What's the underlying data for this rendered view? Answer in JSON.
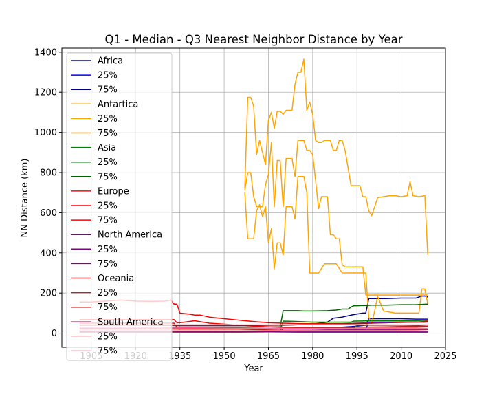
{
  "chart_data": {
    "type": "line",
    "title": "Q1 - Median - Q3 Nearest Neighbor Distance by Year",
    "xlabel": "Year",
    "ylabel": "NN Distance (km)",
    "xlim": [
      1895,
      2025
    ],
    "ylim": [
      -70,
      1420
    ],
    "xticks": [
      1905,
      1920,
      1935,
      1950,
      1965,
      1980,
      1995,
      2010,
      2025
    ],
    "yticks": [
      0,
      200,
      400,
      600,
      800,
      1000,
      1200,
      1400
    ],
    "grid": true,
    "legend_position": "top-left",
    "series": [
      {
        "name": "Africa",
        "color": "#0000cd",
        "x": [
          1901,
          1905,
          1915,
          1925,
          1935,
          1945,
          1955,
          1965,
          1975,
          1985,
          1990,
          1995,
          1998,
          1999,
          2005,
          2010,
          2015,
          2018,
          2019
        ],
        "values": [
          25,
          25,
          24,
          23,
          22,
          22,
          22,
          23,
          25,
          28,
          30,
          35,
          40,
          72,
          72,
          72,
          70,
          70,
          70
        ]
      },
      {
        "name": "25%",
        "color": "#0000ff",
        "x": [
          1901,
          1905,
          1915,
          1925,
          1935,
          1945,
          1955,
          1965,
          1975,
          1985,
          1990,
          1995,
          1998,
          1999,
          2005,
          2010,
          2015,
          2018,
          2019
        ],
        "values": [
          12,
          12,
          11,
          11,
          10,
          10,
          10,
          11,
          12,
          14,
          15,
          18,
          20,
          55,
          55,
          55,
          55,
          55,
          58
        ]
      },
      {
        "name": "75%",
        "color": "#00008b",
        "x": [
          1901,
          1905,
          1915,
          1925,
          1935,
          1945,
          1955,
          1965,
          1970,
          1975,
          1980,
          1985,
          1987,
          1990,
          1993,
          1995,
          1997,
          1998,
          1999,
          2005,
          2010,
          2015,
          2017,
          2018,
          2019
        ],
        "values": [
          45,
          45,
          42,
          40,
          38,
          38,
          38,
          40,
          40,
          42,
          45,
          55,
          75,
          80,
          90,
          95,
          100,
          100,
          172,
          172,
          175,
          175,
          185,
          185,
          180
        ]
      },
      {
        "name": "Antartica",
        "color": "#ffa500",
        "x": [
          1957,
          1958,
          1959,
          1960,
          1961,
          1962,
          1963,
          1964,
          1965,
          1966,
          1967,
          1968,
          1969,
          1970,
          1971,
          1972,
          1973,
          1974,
          1975,
          1976,
          1977,
          1978,
          1979,
          1980,
          1981,
          1982,
          1983,
          1984,
          1985,
          1986,
          1987,
          1988,
          1989,
          1990,
          1991,
          1992,
          1993,
          1994,
          1995,
          1996,
          1997,
          1998,
          1999,
          2000,
          2002,
          2004,
          2006,
          2008,
          2010,
          2012,
          2013,
          2014,
          2016,
          2018,
          2019
        ],
        "values": [
          710,
          800,
          800,
          680,
          630,
          630,
          630,
          740,
          790,
          950,
          630,
          860,
          860,
          630,
          870,
          870,
          870,
          780,
          960,
          960,
          960,
          910,
          910,
          890,
          760,
          620,
          680,
          680,
          680,
          490,
          490,
          470,
          470,
          340,
          330,
          330,
          330,
          330,
          330,
          330,
          330,
          190,
          190,
          190,
          190,
          190,
          190,
          190,
          190,
          190,
          190,
          190,
          190,
          190,
          190
        ]
      },
      {
        "name": "25%",
        "color": "#ffa500",
        "x": [
          1957,
          1958,
          1959,
          1960,
          1961,
          1962,
          1963,
          1964,
          1965,
          1966,
          1967,
          1968,
          1969,
          1970,
          1971,
          1972,
          1973,
          1974,
          1975,
          1976,
          1977,
          1978,
          1979,
          1980,
          1982,
          1984,
          1985,
          1986,
          1988,
          1990,
          1995,
          1998,
          1999,
          2000,
          2001,
          2002,
          2004,
          2008,
          2012,
          2016,
          2017,
          2018,
          2019
        ],
        "values": [
          700,
          470,
          470,
          470,
          610,
          640,
          580,
          630,
          450,
          520,
          320,
          450,
          450,
          390,
          630,
          630,
          630,
          570,
          780,
          780,
          780,
          700,
          300,
          300,
          300,
          345,
          345,
          345,
          345,
          300,
          300,
          300,
          80,
          50,
          110,
          185,
          110,
          100,
          100,
          100,
          220,
          220,
          145
        ]
      },
      {
        "name": "75%",
        "color": "#ffa500",
        "x": [
          1957,
          1958,
          1959,
          1960,
          1961,
          1962,
          1963,
          1964,
          1965,
          1966,
          1967,
          1968,
          1969,
          1970,
          1971,
          1972,
          1973,
          1974,
          1975,
          1976,
          1977,
          1978,
          1979,
          1980,
          1981,
          1982,
          1983,
          1984,
          1985,
          1986,
          1987,
          1988,
          1989,
          1990,
          1991,
          1993,
          1995,
          1996,
          1997,
          1998,
          1999,
          2000,
          2002,
          2004,
          2006,
          2008,
          2010,
          2012,
          2013,
          2014,
          2016,
          2018,
          2019
        ],
        "values": [
          720,
          1175,
          1175,
          1130,
          890,
          960,
          900,
          840,
          1060,
          1100,
          1020,
          1105,
          1105,
          1090,
          1110,
          1110,
          1110,
          1240,
          1300,
          1300,
          1365,
          1110,
          1150,
          1090,
          960,
          950,
          950,
          960,
          960,
          960,
          910,
          910,
          960,
          960,
          910,
          735,
          735,
          735,
          680,
          680,
          610,
          585,
          675,
          680,
          685,
          685,
          680,
          685,
          755,
          685,
          680,
          685,
          390
        ]
      },
      {
        "name": "Asia",
        "color": "#008000",
        "x": [
          1901,
          1905,
          1915,
          1925,
          1935,
          1945,
          1955,
          1965,
          1968,
          1969,
          1970,
          1975,
          1980,
          1985,
          1990,
          1993,
          1994,
          1995,
          2000,
          2005,
          2010,
          2015,
          2019
        ],
        "values": [
          12,
          12,
          12,
          12,
          12,
          12,
          12,
          13,
          14,
          14,
          60,
          58,
          55,
          55,
          55,
          55,
          60,
          60,
          62,
          62,
          62,
          62,
          65
        ]
      },
      {
        "name": "25%",
        "color": "#008000",
        "x": [
          1901,
          1905,
          1915,
          1925,
          1935,
          1945,
          1955,
          1965,
          1968,
          1969,
          1970,
          1975,
          1980,
          1985,
          1990,
          1994,
          1995,
          2000,
          2005,
          2010,
          2015,
          2019
        ],
        "values": [
          5,
          5,
          5,
          5,
          5,
          5,
          5,
          6,
          6,
          6,
          25,
          25,
          24,
          25,
          25,
          25,
          40,
          40,
          40,
          40,
          40,
          42
        ]
      },
      {
        "name": "75%",
        "color": "#006400",
        "x": [
          1901,
          1905,
          1915,
          1925,
          1935,
          1945,
          1955,
          1965,
          1968,
          1969,
          1970,
          1975,
          1977,
          1980,
          1985,
          1988,
          1990,
          1992,
          1993,
          1994,
          1995,
          1997,
          1998,
          2000,
          2005,
          2010,
          2015,
          2019
        ],
        "values": [
          30,
          30,
          30,
          30,
          30,
          30,
          30,
          32,
          32,
          32,
          112,
          112,
          110,
          110,
          112,
          115,
          120,
          120,
          130,
          137,
          137,
          138,
          138,
          140,
          140,
          142,
          142,
          145
        ]
      },
      {
        "name": "Europe",
        "color": "#ff0000",
        "x": [
          1901,
          1905,
          1910,
          1915,
          1920,
          1925,
          1930,
          1933,
          1934,
          1935,
          1940,
          1945,
          1950,
          1955,
          1960,
          1965,
          1970,
          1975,
          1980,
          1985,
          1990,
          1995,
          2000,
          2005,
          2010,
          2015,
          2019
        ],
        "values": [
          68,
          68,
          68,
          68,
          68,
          68,
          68,
          68,
          52,
          52,
          62,
          50,
          45,
          40,
          35,
          32,
          30,
          30,
          30,
          30,
          30,
          30,
          30,
          30,
          30,
          30,
          32
        ]
      },
      {
        "name": "25%",
        "color": "#ff0000",
        "x": [
          1901,
          1905,
          1915,
          1925,
          1933,
          1934,
          1935,
          1940,
          1945,
          1950,
          1955,
          1960,
          1965,
          1970,
          1975,
          1980,
          1985,
          1990,
          1995,
          2000,
          2005,
          2010,
          2015,
          2019
        ],
        "values": [
          50,
          50,
          50,
          50,
          50,
          30,
          30,
          28,
          25,
          22,
          20,
          18,
          16,
          15,
          15,
          15,
          16,
          16,
          16,
          16,
          17,
          17,
          17,
          18
        ]
      },
      {
        "name": "75%",
        "color": "#ff0000",
        "x": [
          1901,
          1905,
          1910,
          1915,
          1920,
          1925,
          1930,
          1932,
          1933,
          1934,
          1935,
          1938,
          1940,
          1942,
          1945,
          1950,
          1955,
          1960,
          1965,
          1970,
          1975,
          1980,
          1985,
          1990,
          1995,
          2000,
          2005,
          2010,
          2015,
          2019
        ],
        "values": [
          155,
          155,
          160,
          165,
          160,
          158,
          160,
          165,
          145,
          145,
          100,
          95,
          90,
          90,
          80,
          72,
          65,
          58,
          52,
          50,
          48,
          48,
          48,
          48,
          50,
          52,
          52,
          55,
          55,
          60
        ]
      },
      {
        "name": "North America",
        "color": "#800080",
        "x": [
          1901,
          1905,
          1915,
          1925,
          1935,
          1945,
          1955,
          1965,
          1975,
          1985,
          1995,
          2005,
          2015,
          2019
        ],
        "values": [
          15,
          15,
          14,
          13,
          12,
          12,
          11,
          11,
          10,
          10,
          10,
          10,
          10,
          10
        ]
      },
      {
        "name": "25%",
        "color": "#800080",
        "x": [
          1901,
          1905,
          1915,
          1925,
          1935,
          1945,
          1955,
          1965,
          1975,
          1985,
          1995,
          2005,
          2015,
          2019
        ],
        "values": [
          8,
          8,
          8,
          7,
          7,
          6,
          6,
          6,
          5,
          5,
          5,
          5,
          5,
          5
        ]
      },
      {
        "name": "75%",
        "color": "#800080",
        "x": [
          1901,
          1905,
          1915,
          1925,
          1935,
          1945,
          1955,
          1965,
          1975,
          1985,
          1995,
          2005,
          2015,
          2019
        ],
        "values": [
          30,
          30,
          28,
          26,
          25,
          24,
          23,
          22,
          22,
          21,
          21,
          21,
          21,
          21
        ]
      },
      {
        "name": "Oceania",
        "color": "#b22222",
        "x": [
          1901,
          1905,
          1915,
          1925,
          1935,
          1945,
          1955,
          1965,
          1975,
          1985,
          1995,
          2005,
          2015,
          2019
        ],
        "values": [
          22,
          22,
          21,
          21,
          20,
          20,
          20,
          22,
          25,
          28,
          30,
          32,
          35,
          35
        ]
      },
      {
        "name": "25%",
        "color": "#a52a2a",
        "x": [
          1901,
          1905,
          1915,
          1925,
          1935,
          1945,
          1955,
          1965,
          1975,
          1985,
          1995,
          2005,
          2015,
          2019
        ],
        "values": [
          10,
          10,
          10,
          10,
          10,
          10,
          10,
          11,
          12,
          14,
          15,
          16,
          18,
          18
        ]
      },
      {
        "name": "75%",
        "color": "#8b1a1a",
        "x": [
          1901,
          1905,
          1915,
          1925,
          1935,
          1945,
          1955,
          1965,
          1975,
          1985,
          1995,
          2005,
          2015,
          2019
        ],
        "values": [
          40,
          40,
          40,
          40,
          38,
          38,
          38,
          40,
          42,
          45,
          48,
          52,
          55,
          55
        ]
      },
      {
        "name": "South America",
        "color": "#ff69b4",
        "x": [
          1901,
          1905,
          1915,
          1925,
          1935,
          1945,
          1955,
          1965,
          1975,
          1985,
          1995,
          2005,
          2015,
          2019
        ],
        "values": [
          28,
          28,
          27,
          27,
          26,
          26,
          25,
          25,
          24,
          24,
          24,
          24,
          24,
          24
        ]
      },
      {
        "name": "25%",
        "color": "#ffb6c1",
        "x": [
          1901,
          1905,
          1915,
          1925,
          1935,
          1945,
          1955,
          1965,
          1975,
          1985,
          1995,
          2005,
          2015,
          2019
        ],
        "values": [
          14,
          14,
          14,
          13,
          13,
          13,
          12,
          12,
          12,
          12,
          12,
          12,
          12,
          12
        ]
      },
      {
        "name": "75%",
        "color": "#ffc0cb",
        "x": [
          1901,
          1905,
          1915,
          1925,
          1935,
          1945,
          1955,
          1965,
          1975,
          1985,
          1995,
          2005,
          2015,
          2019
        ],
        "values": [
          45,
          45,
          44,
          44,
          43,
          43,
          42,
          42,
          42,
          42,
          42,
          42,
          42,
          42
        ]
      }
    ]
  }
}
